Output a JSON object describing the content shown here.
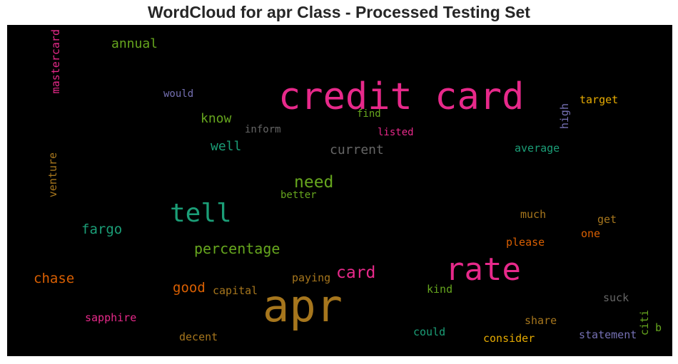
{
  "chart_data": {
    "type": "wordcloud",
    "title": "WordCloud for apr Class - Processed Testing Set",
    "background": "#000000",
    "palette": {
      "magenta": "#e7298a",
      "olive": "#a6761d",
      "teal": "#1b9e77",
      "green": "#66a61e",
      "orange": "#d95f02",
      "gold": "#e6ab02",
      "purple": "#7570b3",
      "gray": "#666666"
    },
    "words": [
      {
        "text": "apr",
        "color": "#a6761d",
        "rotated": false
      },
      {
        "text": "credit card",
        "color": "#e7298a",
        "rotated": false
      },
      {
        "text": "rate",
        "color": "#e7298a",
        "rotated": false
      },
      {
        "text": "tell",
        "color": "#1b9e77",
        "rotated": false
      },
      {
        "text": "need",
        "color": "#66a61e",
        "rotated": false
      },
      {
        "text": "card",
        "color": "#e7298a",
        "rotated": false
      },
      {
        "text": "percentage",
        "color": "#66a61e",
        "rotated": false
      },
      {
        "text": "fargo",
        "color": "#1b9e77",
        "rotated": false
      },
      {
        "text": "chase",
        "color": "#d95f02",
        "rotated": false
      },
      {
        "text": "good",
        "color": "#d95f02",
        "rotated": false
      },
      {
        "text": "know",
        "color": "#66a61e",
        "rotated": false
      },
      {
        "text": "well",
        "color": "#1b9e77",
        "rotated": false
      },
      {
        "text": "current",
        "color": "#666666",
        "rotated": false
      },
      {
        "text": "annual",
        "color": "#66a61e",
        "rotated": false
      },
      {
        "text": "mastercard",
        "color": "#e7298a",
        "rotated": true
      },
      {
        "text": "venture",
        "color": "#a6761d",
        "rotated": true
      },
      {
        "text": "sapphire",
        "color": "#e7298a",
        "rotated": false
      },
      {
        "text": "would",
        "color": "#7570b3",
        "rotated": false
      },
      {
        "text": "inform",
        "color": "#666666",
        "rotated": false
      },
      {
        "text": "find",
        "color": "#66a61e",
        "rotated": false
      },
      {
        "text": "listed",
        "color": "#e7298a",
        "rotated": false
      },
      {
        "text": "better",
        "color": "#66a61e",
        "rotated": false
      },
      {
        "text": "capital",
        "color": "#a6761d",
        "rotated": false
      },
      {
        "text": "paying",
        "color": "#a6761d",
        "rotated": false
      },
      {
        "text": "decent",
        "color": "#a6761d",
        "rotated": false
      },
      {
        "text": "kind",
        "color": "#66a61e",
        "rotated": false
      },
      {
        "text": "could",
        "color": "#1b9e77",
        "rotated": false
      },
      {
        "text": "consider",
        "color": "#e6ab02",
        "rotated": false
      },
      {
        "text": "share",
        "color": "#a6761d",
        "rotated": false
      },
      {
        "text": "please",
        "color": "#d95f02",
        "rotated": false
      },
      {
        "text": "much",
        "color": "#a6761d",
        "rotated": false
      },
      {
        "text": "one",
        "color": "#d95f02",
        "rotated": false
      },
      {
        "text": "get",
        "color": "#a6761d",
        "rotated": false
      },
      {
        "text": "average",
        "color": "#1b9e77",
        "rotated": false
      },
      {
        "text": "target",
        "color": "#e6ab02",
        "rotated": false
      },
      {
        "text": "high",
        "color": "#7570b3",
        "rotated": true
      },
      {
        "text": "suck",
        "color": "#666666",
        "rotated": false
      },
      {
        "text": "statement",
        "color": "#7570b3",
        "rotated": false
      },
      {
        "text": "citi",
        "color": "#66a61e",
        "rotated": true
      },
      {
        "text": "b",
        "color": "#66a61e",
        "rotated": false
      }
    ]
  }
}
